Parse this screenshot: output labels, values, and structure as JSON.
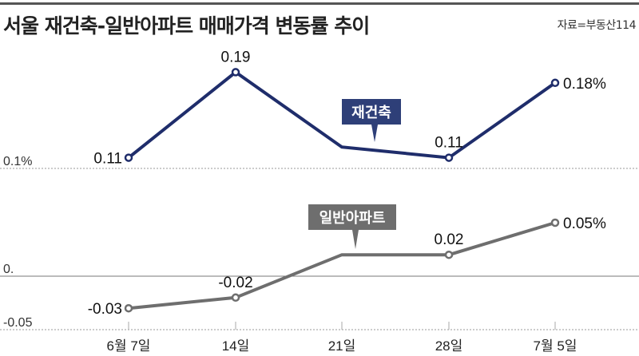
{
  "title": "서울 재건축-일반아파트 매매가격 변동률 추이",
  "source": "자료=부동산114",
  "chart_data": [
    {
      "type": "line",
      "categories": [
        "6월 7일",
        "14일",
        "21일",
        "28일",
        "7월 5일"
      ],
      "series": [
        {
          "name": "재건축",
          "values": [
            0.11,
            0.19,
            0.12,
            0.11,
            0.18
          ],
          "labels": [
            "0.11",
            "0.19",
            "",
            "0.11",
            "0.18%"
          ],
          "color": "#1f2d6b",
          "label_bg": "#2e3f78"
        }
      ],
      "baseline_label": "0.1%",
      "baseline_value": 0.1,
      "ylim": [
        0.1,
        0.2
      ]
    },
    {
      "type": "line",
      "categories": [
        "6월 7일",
        "14일",
        "21일",
        "28일",
        "7월 5일"
      ],
      "series": [
        {
          "name": "일반아파트",
          "values": [
            -0.03,
            -0.02,
            0.02,
            0.02,
            0.05
          ],
          "labels": [
            "-0.03",
            "-0.02",
            "",
            "0.02",
            "0.05%"
          ],
          "color": "#6e6e6e",
          "label_bg": "#6e6e6e"
        }
      ],
      "zero_label": "0.",
      "bottom_label": "-0.05",
      "ylim": [
        -0.05,
        0.06
      ]
    }
  ]
}
